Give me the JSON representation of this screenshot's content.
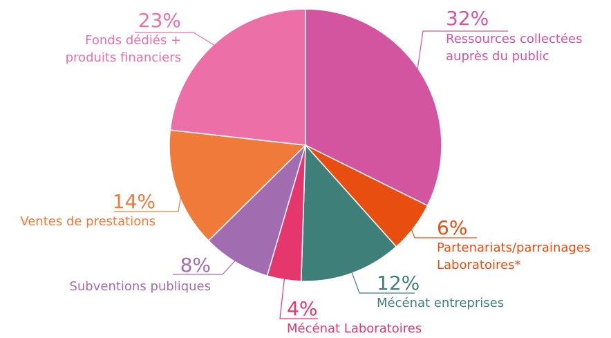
{
  "chart_data": {
    "type": "pie",
    "categories": [
      "Ressources collectées auprès du public",
      "Partenariats/parrainages Laboratoires*",
      "Mécénat entreprises",
      "Mécénat Laboratoires",
      "Subventions publiques",
      "Ventes de prestations",
      "Fonds dédiés + produits financiers"
    ],
    "values": [
      32,
      6,
      12,
      4,
      8,
      14,
      23
    ],
    "value_labels": [
      "32%",
      "6%",
      "12%",
      "4%",
      "8%",
      "14%",
      "23%"
    ],
    "colors": [
      "#d4559f",
      "#e84e10",
      "#3f7f7a",
      "#e6366e",
      "#a26cb0",
      "#ef7a3a",
      "#ec6fa8"
    ]
  }
}
